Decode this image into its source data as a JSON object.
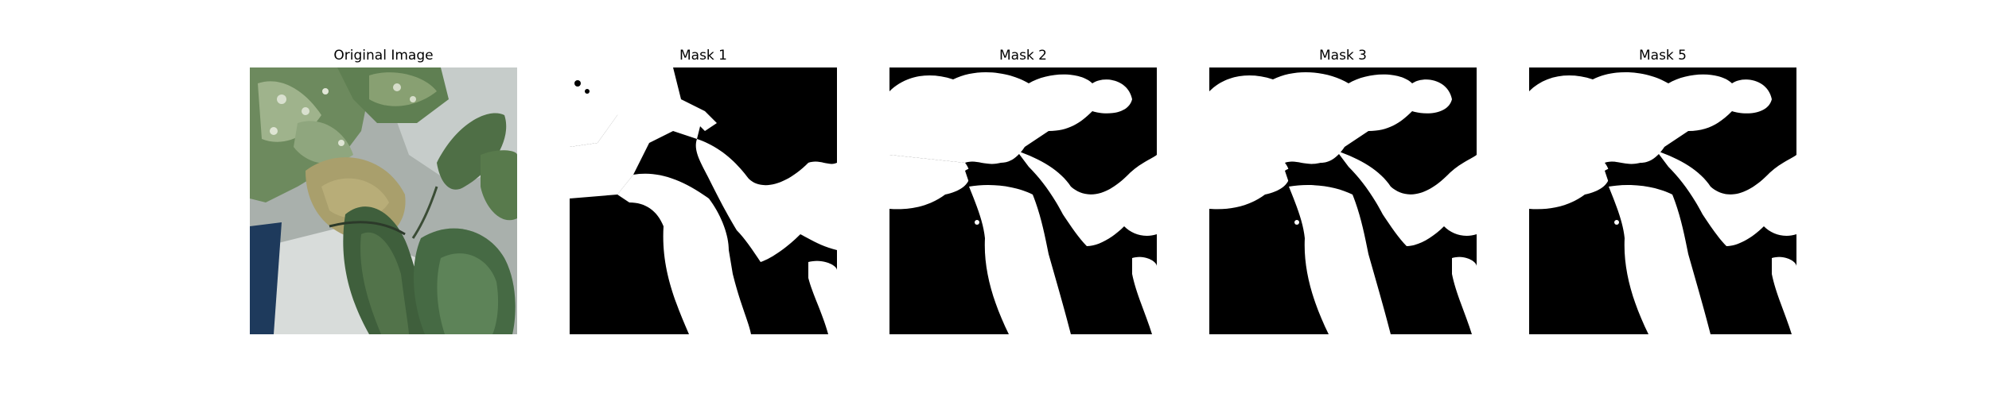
{
  "figure": {
    "panels": [
      {
        "title": "Original Image",
        "kind": "photo",
        "subject": "plant-leaves"
      },
      {
        "title": "Mask 1",
        "kind": "mask",
        "variant": "mask1"
      },
      {
        "title": "Mask 2",
        "kind": "mask",
        "variant": "mask2"
      },
      {
        "title": "Mask 3",
        "kind": "mask",
        "variant": "mask3"
      },
      {
        "title": "Mask 5",
        "kind": "mask",
        "variant": "mask5"
      }
    ],
    "colors": {
      "background": "#ffffff",
      "mask_foreground": "#ffffff",
      "mask_background": "#000000"
    }
  }
}
